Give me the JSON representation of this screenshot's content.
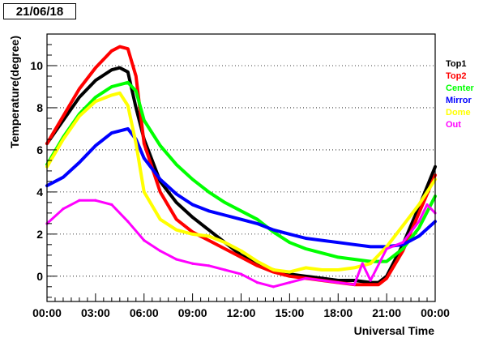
{
  "chart_data": {
    "type": "line",
    "title": "21/06/18",
    "xlabel": "Universal Time",
    "ylabel": "Temperature(degree)",
    "xlim": [
      0,
      24
    ],
    "ylim": [
      -1.2,
      11.5
    ],
    "grid": "horizontal dotted",
    "legend_position": "right",
    "x_tick_labels": [
      "00:00",
      "03:00",
      "06:00",
      "09:00",
      "12:00",
      "15:00",
      "18:00",
      "21:00",
      "00:00"
    ],
    "x_ticks_hours": [
      0,
      3,
      6,
      9,
      12,
      15,
      18,
      21,
      24
    ],
    "y_ticks": [
      0,
      2,
      4,
      6,
      8,
      10
    ],
    "series": [
      {
        "name": "Top1",
        "color": "#000000",
        "x": [
          0,
          1,
          2,
          3,
          4,
          4.5,
          5,
          5.5,
          6,
          7,
          8,
          9,
          10,
          11,
          12,
          13,
          14,
          15,
          16,
          17,
          18,
          19,
          20,
          20.5,
          21,
          22,
          23,
          24
        ],
        "y": [
          6.3,
          7.4,
          8.5,
          9.3,
          9.8,
          9.9,
          9.7,
          8.0,
          6.5,
          4.5,
          3.5,
          2.8,
          2.2,
          1.6,
          1.0,
          0.6,
          0.3,
          0.1,
          0.0,
          -0.1,
          -0.2,
          -0.2,
          -0.3,
          -0.3,
          0.0,
          1.5,
          3.3,
          5.2
        ]
      },
      {
        "name": "Top2",
        "color": "#ff0000",
        "x": [
          0,
          1,
          2,
          3,
          4,
          4.5,
          5,
          5.5,
          6,
          7,
          8,
          9,
          10,
          11,
          12,
          13,
          14,
          15,
          16,
          17,
          18,
          19,
          20,
          20.5,
          21,
          22,
          23,
          24
        ],
        "y": [
          6.3,
          7.6,
          8.9,
          9.9,
          10.7,
          10.9,
          10.8,
          9.5,
          6.3,
          4.0,
          2.7,
          2.1,
          1.7,
          1.3,
          0.9,
          0.5,
          0.2,
          0.0,
          -0.1,
          -0.2,
          -0.3,
          -0.4,
          -0.4,
          -0.4,
          -0.1,
          1.2,
          3.0,
          4.8
        ]
      },
      {
        "name": "Center",
        "color": "#00ff00",
        "x": [
          0,
          1,
          2,
          3,
          4,
          5,
          5.5,
          6,
          7,
          8,
          9,
          10,
          11,
          12,
          13,
          14,
          15,
          16,
          17,
          18,
          19,
          20,
          21,
          22,
          23,
          24
        ],
        "y": [
          5.3,
          6.6,
          7.7,
          8.5,
          9.0,
          9.2,
          8.8,
          7.4,
          6.2,
          5.3,
          4.6,
          4.0,
          3.5,
          3.1,
          2.7,
          2.1,
          1.6,
          1.3,
          1.1,
          0.9,
          0.8,
          0.7,
          0.7,
          1.3,
          2.3,
          3.8
        ]
      },
      {
        "name": "Mirror",
        "color": "#0000ff",
        "x": [
          0,
          1,
          2,
          3,
          4,
          5,
          5.5,
          6,
          7,
          8,
          9,
          10,
          11,
          12,
          13,
          14,
          15,
          16,
          17,
          18,
          19,
          20,
          21,
          22,
          23,
          24
        ],
        "y": [
          4.3,
          4.7,
          5.4,
          6.2,
          6.8,
          7.0,
          6.5,
          5.6,
          4.6,
          3.9,
          3.4,
          3.1,
          2.9,
          2.7,
          2.5,
          2.2,
          2.0,
          1.8,
          1.7,
          1.6,
          1.5,
          1.4,
          1.4,
          1.5,
          1.9,
          2.6
        ]
      },
      {
        "name": "Dome",
        "color": "#ffff00",
        "x": [
          0,
          1,
          2,
          3,
          4,
          4.5,
          5,
          5.5,
          6,
          7,
          8,
          9,
          10,
          11,
          12,
          13,
          14,
          15,
          16,
          17,
          18,
          19,
          20,
          21,
          22,
          23,
          24
        ],
        "y": [
          5.2,
          6.5,
          7.6,
          8.3,
          8.6,
          8.7,
          8.1,
          6.3,
          4.0,
          2.7,
          2.2,
          2.0,
          1.9,
          1.6,
          1.2,
          0.7,
          0.3,
          0.2,
          0.4,
          0.3,
          0.3,
          0.4,
          0.6,
          1.4,
          2.4,
          3.4,
          4.6
        ]
      },
      {
        "name": "Out",
        "color": "#ff00ff",
        "x": [
          0,
          1,
          2,
          3,
          4,
          5,
          6,
          7,
          8,
          9,
          10,
          11,
          12,
          13,
          14,
          15,
          16,
          17,
          18,
          19,
          19.5,
          20,
          21,
          22,
          23,
          23.5,
          24
        ],
        "y": [
          2.5,
          3.2,
          3.6,
          3.6,
          3.4,
          2.6,
          1.7,
          1.2,
          0.8,
          0.6,
          0.5,
          0.3,
          0.1,
          -0.3,
          -0.5,
          -0.3,
          -0.1,
          -0.2,
          -0.3,
          -0.4,
          0.6,
          -0.2,
          1.3,
          1.6,
          2.6,
          3.4,
          3.0
        ]
      }
    ]
  }
}
